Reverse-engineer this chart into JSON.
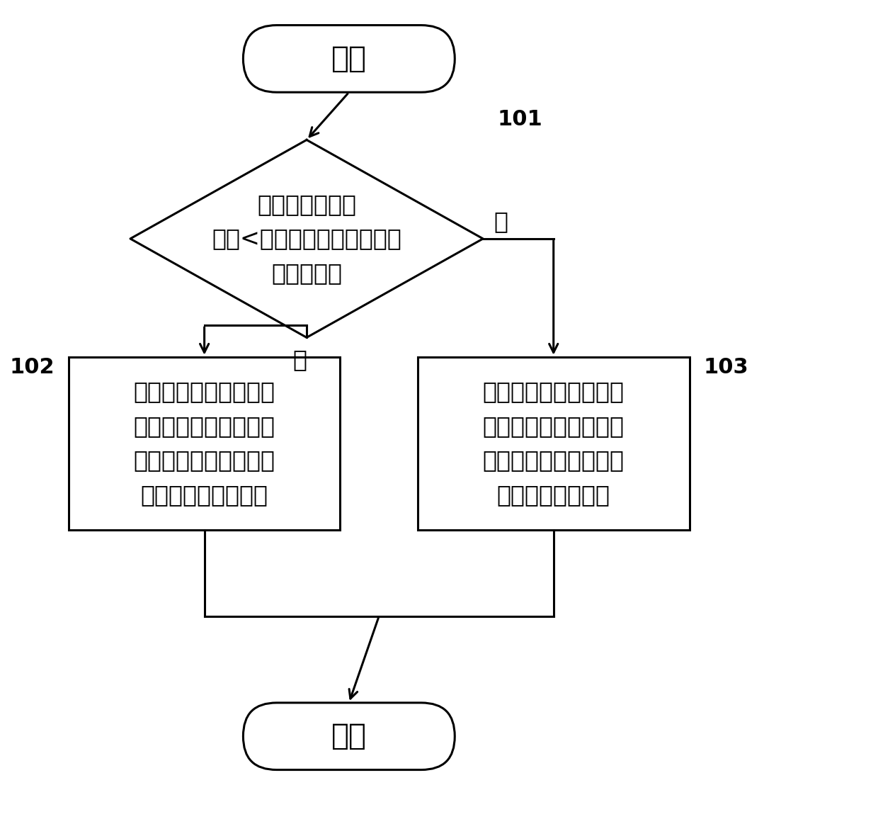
{
  "bg_color": "#ffffff",
  "line_color": "#000000",
  "fill_color": "#ffffff",
  "font_color": "#000000",
  "start_end_text": [
    "开始",
    "结束"
  ],
  "diamond_text": "电网调度需求功\n率量<所有电化学储能电站额\n定容量之和",
  "diamond_label": "101",
  "yes_label": "是",
  "no_label": "否",
  "box_left_text": "利用所述电化学储能电\n站参与电网调度的综合\n评价系数确定各电化学\n储能电站分配的功率",
  "box_left_label": "102",
  "box_right_text": "利用电化学储能电站的\n额定功率和电网调度需\n求功率量确定电化学储\n能电站分配的功率",
  "box_right_label": "103",
  "font_size_main": 24,
  "font_size_label": 22,
  "font_size_start_end": 30,
  "lw": 2.2
}
